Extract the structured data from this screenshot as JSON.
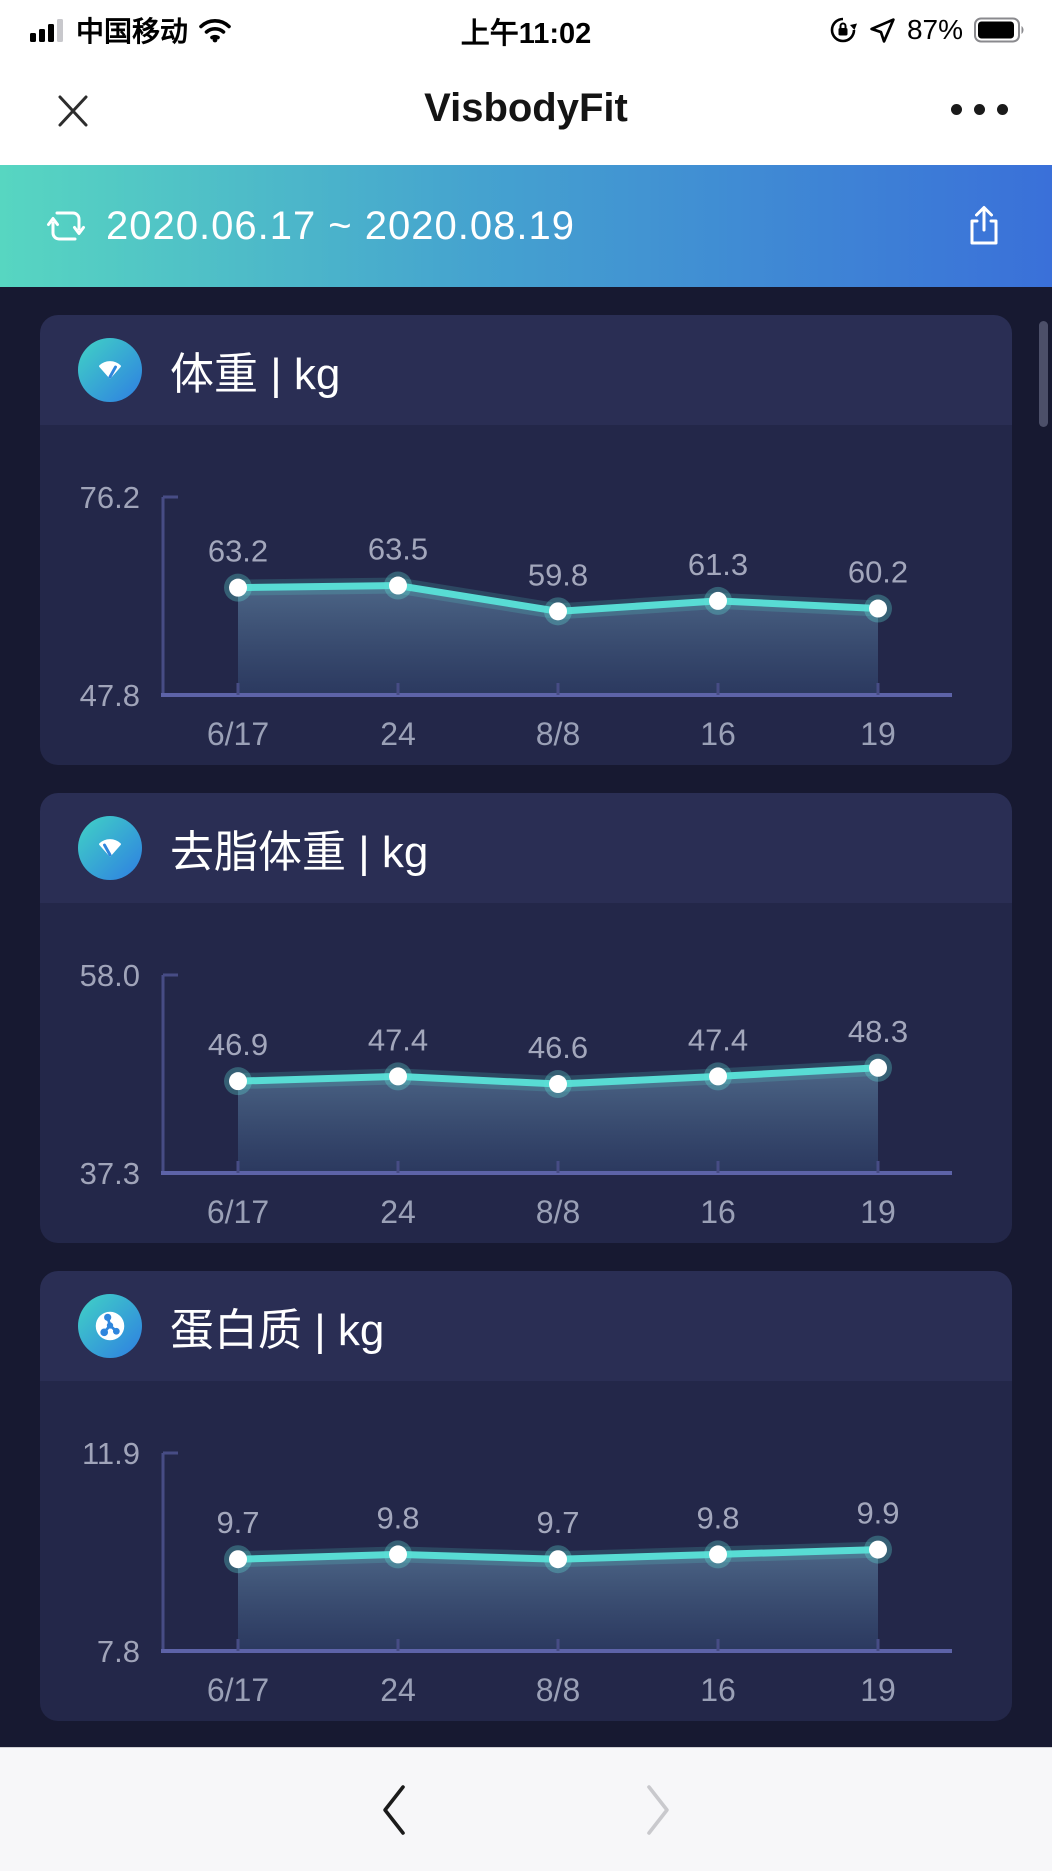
{
  "status_bar": {
    "carrier": "中国移动",
    "time": "上午11:02",
    "battery_percent": "87%",
    "icons": [
      "signal-bars-icon",
      "wifi-icon",
      "rotation-lock-icon",
      "location-arrow-icon",
      "battery-icon"
    ]
  },
  "nav_bar": {
    "title": "VisbodyFit",
    "close_icon": "close-x-icon",
    "more_icon": "ellipsis-icon"
  },
  "banner": {
    "date_range": "2020.06.17 ~ 2020.08.19",
    "range_icon": "switch-date-icon",
    "share_icon": "share-export-icon",
    "gradient_start": "#57d6c1",
    "gradient_end": "#3a70d9"
  },
  "charts": [
    {
      "id": "weight",
      "title": "体重 | kg",
      "icon": "scale-icon",
      "y_max_label": "76.2",
      "y_min_label": "47.8",
      "y_range": [
        47.8,
        76.2
      ],
      "x_labels": [
        "6/17",
        "24",
        "8/8",
        "16",
        "19"
      ],
      "values": [
        63.2,
        63.5,
        59.8,
        61.3,
        60.2
      ],
      "value_labels": [
        "63.2",
        "63.5",
        "59.8",
        "61.3",
        "60.2"
      ]
    },
    {
      "id": "lean-body-mass",
      "title": "去脂体重 | kg",
      "icon": "scale-icon",
      "y_max_label": "58.0",
      "y_min_label": "37.3",
      "y_range": [
        37.3,
        58.0
      ],
      "x_labels": [
        "6/17",
        "24",
        "8/8",
        "16",
        "19"
      ],
      "values": [
        46.9,
        47.4,
        46.6,
        47.4,
        48.3
      ],
      "value_labels": [
        "46.9",
        "47.4",
        "46.6",
        "47.4",
        "48.3"
      ]
    },
    {
      "id": "protein",
      "title": "蛋白质 | kg",
      "icon": "molecule-icon",
      "y_max_label": "11.9",
      "y_min_label": "7.8",
      "y_range": [
        7.8,
        11.9
      ],
      "x_labels": [
        "6/17",
        "24",
        "8/8",
        "16",
        "19"
      ],
      "values": [
        9.7,
        9.8,
        9.7,
        9.8,
        9.9
      ],
      "value_labels": [
        "9.7",
        "9.8",
        "9.7",
        "9.8",
        "9.9"
      ]
    }
  ],
  "chart_data": [
    {
      "type": "line",
      "title": "体重 | kg",
      "categories": [
        "6/17",
        "24",
        "8/8",
        "16",
        "19"
      ],
      "values": [
        63.2,
        63.5,
        59.8,
        61.3,
        60.2
      ],
      "ylim": [
        47.8,
        76.2
      ],
      "unit": "kg",
      "legend_position": "none",
      "grid": false,
      "area_fill": true,
      "line_color": "#58dcd4"
    },
    {
      "type": "line",
      "title": "去脂体重 | kg",
      "categories": [
        "6/17",
        "24",
        "8/8",
        "16",
        "19"
      ],
      "values": [
        46.9,
        47.4,
        46.6,
        47.4,
        48.3
      ],
      "ylim": [
        37.3,
        58.0
      ],
      "unit": "kg",
      "legend_position": "none",
      "grid": false,
      "area_fill": true,
      "line_color": "#58dcd4"
    },
    {
      "type": "line",
      "title": "蛋白质 | kg",
      "categories": [
        "6/17",
        "24",
        "8/8",
        "16",
        "19"
      ],
      "values": [
        9.7,
        9.8,
        9.7,
        9.8,
        9.9
      ],
      "ylim": [
        7.8,
        11.9
      ],
      "unit": "kg",
      "legend_position": "none",
      "grid": false,
      "area_fill": true,
      "line_color": "#58dcd4"
    }
  ],
  "footer": {
    "prev_icon": "chevron-left-icon",
    "next_icon": "chevron-right-icon",
    "prev_enabled": true,
    "next_enabled": false
  },
  "colors": {
    "page_bg": "#171931",
    "card_header_bg": "#2a2e54",
    "card_body_bg": "#232749",
    "accent_teal": "#58dcd4",
    "axis_vertical": "#474c85",
    "axis_horizontal": "#5d63a8",
    "label_gray": "#a0a4b9"
  }
}
